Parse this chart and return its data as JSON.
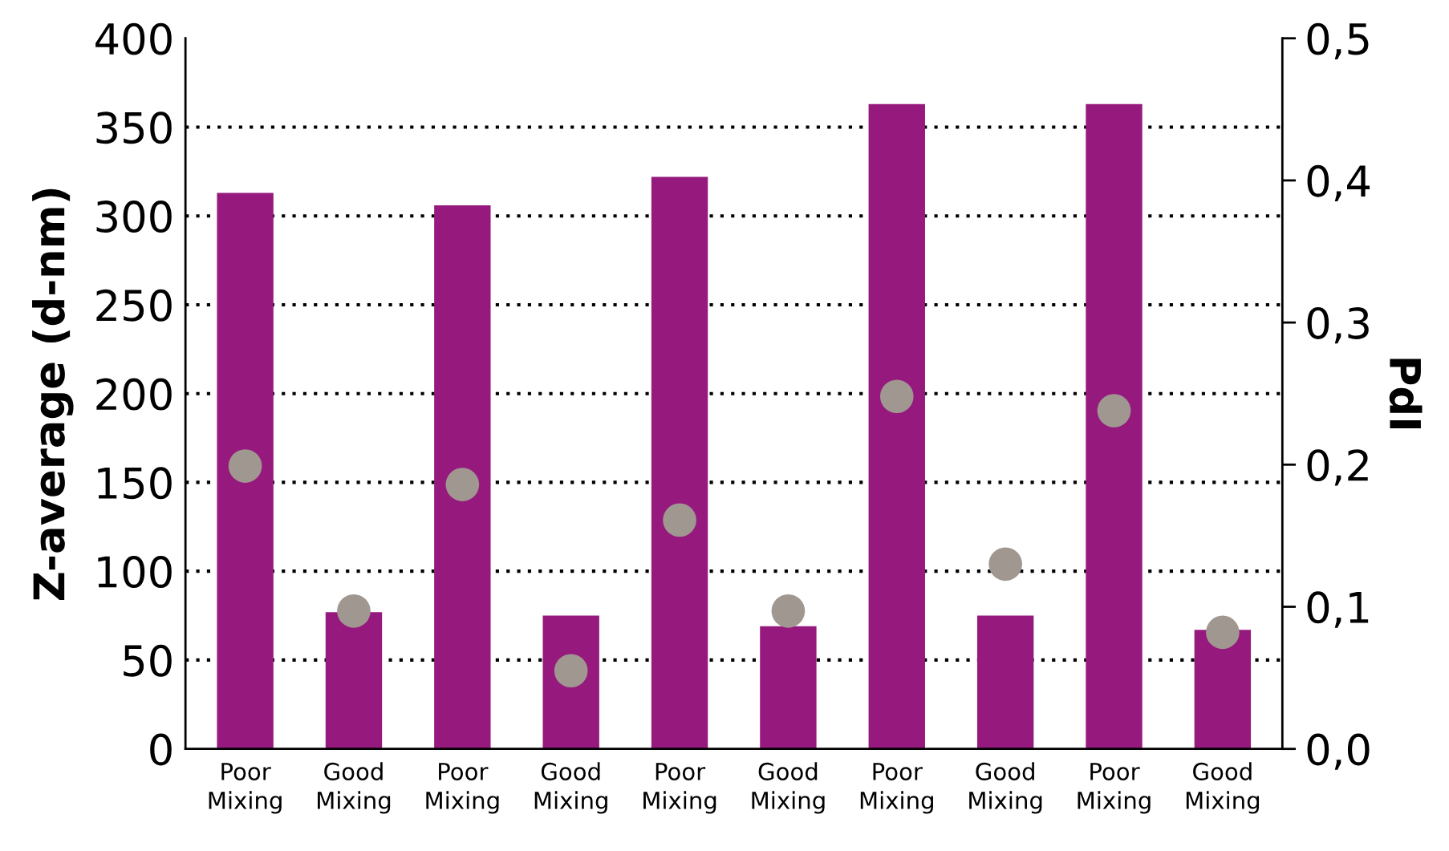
{
  "chart_data": {
    "type": "bar",
    "ylabel": "Z-average (d-nm)",
    "y2label": "PdI",
    "categories": [
      "Poor\nMixing",
      "Good\nMixing",
      "Poor\nMixing",
      "Good\nMixing",
      "Poor\nMixing",
      "Good\nMixing",
      "Poor\nMixing",
      "Good\nMixing",
      "Poor\nMixing",
      "Good\nMixing"
    ],
    "series": [
      {
        "color": "#961a7e",
        "values": [
          313,
          77,
          306,
          75,
          322,
          69,
          363,
          75,
          363,
          67
        ]
      },
      {
        "type": "scatter",
        "axis": "y2",
        "color": "#a09890",
        "marker": "circle",
        "values": [
          0.199,
          0.097,
          0.186,
          0.055,
          0.161,
          0.097,
          0.248,
          0.13,
          0.238,
          0.082
        ]
      }
    ],
    "ylim": [
      0,
      400
    ],
    "yticks": [
      0,
      50,
      100,
      150,
      200,
      250,
      300,
      350,
      400
    ],
    "y2lim": [
      0,
      0.5
    ],
    "y2ticks": [
      {
        "value": 0,
        "label": "0,0"
      },
      {
        "value": 0.1,
        "label": "0,1"
      },
      {
        "value": 0.2,
        "label": "0,2"
      },
      {
        "value": 0.3,
        "label": "0,3"
      },
      {
        "value": 0.4,
        "label": "0,4"
      },
      {
        "value": 0.5,
        "label": "0,5"
      }
    ],
    "grid": "y"
  }
}
